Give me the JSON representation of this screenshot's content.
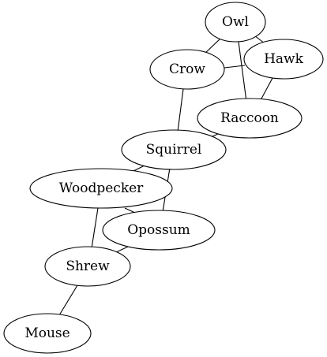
{
  "graph": {
    "nodes": [
      {
        "id": "owl",
        "label": "Owl"
      },
      {
        "id": "hawk",
        "label": "Hawk"
      },
      {
        "id": "crow",
        "label": "Crow"
      },
      {
        "id": "raccoon",
        "label": "Raccoon"
      },
      {
        "id": "squirrel",
        "label": "Squirrel"
      },
      {
        "id": "woodpecker",
        "label": "Woodpecker"
      },
      {
        "id": "opossum",
        "label": "Opossum"
      },
      {
        "id": "shrew",
        "label": "Shrew"
      },
      {
        "id": "mouse",
        "label": "Mouse"
      }
    ],
    "edges": [
      {
        "from": "owl",
        "to": "crow"
      },
      {
        "from": "owl",
        "to": "hawk"
      },
      {
        "from": "owl",
        "to": "raccoon"
      },
      {
        "from": "crow",
        "to": "hawk"
      },
      {
        "from": "hawk",
        "to": "raccoon"
      },
      {
        "from": "crow",
        "to": "squirrel"
      },
      {
        "from": "raccoon",
        "to": "squirrel"
      },
      {
        "from": "squirrel",
        "to": "woodpecker"
      },
      {
        "from": "squirrel",
        "to": "opossum"
      },
      {
        "from": "woodpecker",
        "to": "opossum"
      },
      {
        "from": "woodpecker",
        "to": "shrew"
      },
      {
        "from": "opossum",
        "to": "shrew"
      },
      {
        "from": "shrew",
        "to": "mouse"
      }
    ]
  }
}
